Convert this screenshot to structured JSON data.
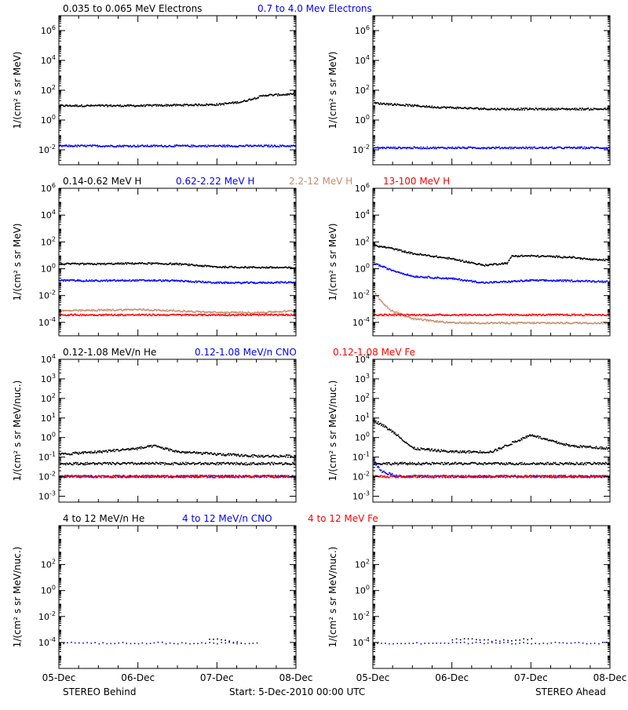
{
  "footer": {
    "left": "STEREO Behind",
    "center": "Start:  5-Dec-2010 00:00 UTC",
    "right": "STEREO Ahead"
  },
  "chart_data": [
    {
      "type": "scatter",
      "panel": "row1-left",
      "y_scale": "log",
      "ylim": [
        0.001,
        10000000
      ],
      "ylabel": "1/(cm² s sr MeV)",
      "x_ticks": [
        "05-Dec",
        "06-Dec",
        "07-Dec",
        "08-Dec"
      ],
      "y_ticks": [
        "10^6",
        "10^4",
        "10^2",
        "10^0",
        "10^-2"
      ],
      "legend": [
        {
          "text": "0.035 to 0.065 MeV Electrons",
          "color": "#000000"
        },
        {
          "text": "0.7 to 4.0 Mev Electrons",
          "color": "#0000ff"
        }
      ],
      "series": [
        {
          "color": "#000000",
          "x": [
            0,
            0.5,
            1.0,
            1.5,
            2.0,
            2.3,
            2.6,
            3.0
          ],
          "y": [
            10,
            10,
            10,
            11,
            12,
            18,
            50,
            60
          ]
        },
        {
          "color": "#0000ff",
          "x": [
            0,
            1.0,
            2.0,
            3.0
          ],
          "y": [
            0.02,
            0.02,
            0.02,
            0.02
          ]
        }
      ]
    },
    {
      "type": "scatter",
      "panel": "row1-right",
      "y_scale": "log",
      "ylim": [
        0.001,
        10000000
      ],
      "ylabel": "1/(cm² s sr MeV)",
      "x_ticks": [
        "05-Dec",
        "06-Dec",
        "07-Dec",
        "08-Dec"
      ],
      "y_ticks": [
        "10^6",
        "10^4",
        "10^2",
        "10^0",
        "10^-2"
      ],
      "legend": [],
      "series": [
        {
          "color": "#000000",
          "x": [
            0,
            0.3,
            0.8,
            1.5,
            2.0,
            2.5,
            3.0
          ],
          "y": [
            15,
            12,
            8,
            6,
            6,
            6,
            6
          ]
        },
        {
          "color": "#0000ff",
          "x": [
            0,
            1.0,
            2.0,
            3.0
          ],
          "y": [
            0.015,
            0.015,
            0.015,
            0.015
          ]
        }
      ]
    },
    {
      "type": "scatter",
      "panel": "row2-left",
      "y_scale": "log",
      "ylim": [
        1e-05,
        1000000
      ],
      "ylabel": "1/(cm² s sr MeV)",
      "x_ticks": [
        "05-Dec",
        "06-Dec",
        "07-Dec",
        "08-Dec"
      ],
      "y_ticks": [
        "10^6",
        "10^4",
        "10^2",
        "10^0",
        "10^-2",
        "10^-4"
      ],
      "legend": [
        {
          "text": "0.14-0.62 MeV H",
          "color": "#000000"
        },
        {
          "text": "0.62-2.22 MeV H",
          "color": "#0000ff"
        },
        {
          "text": "2.2-12 MeV H",
          "color": "#c98c6c"
        },
        {
          "text": "13-100 MeV H",
          "color": "#ff0000"
        }
      ],
      "series": [
        {
          "color": "#000000",
          "x": [
            0,
            0.5,
            1.0,
            1.5,
            2.0,
            2.5,
            3.0
          ],
          "y": [
            2.5,
            2.5,
            2.8,
            2.5,
            1.5,
            1.4,
            1.3
          ]
        },
        {
          "color": "#0000ff",
          "x": [
            0,
            0.5,
            1.0,
            1.5,
            2.0,
            2.5,
            3.0
          ],
          "y": [
            0.15,
            0.14,
            0.15,
            0.14,
            0.1,
            0.1,
            0.11
          ]
        },
        {
          "color": "#c98c6c",
          "x": [
            0,
            0.5,
            1.0,
            1.5,
            2.0,
            2.5,
            3.0
          ],
          "y": [
            0.0008,
            0.0009,
            0.001,
            0.0008,
            0.0006,
            0.0006,
            0.0008
          ]
        },
        {
          "color": "#ff0000",
          "x": [
            0,
            1.0,
            2.0,
            3.0
          ],
          "y": [
            0.0004,
            0.0004,
            0.0004,
            0.0004
          ]
        }
      ]
    },
    {
      "type": "scatter",
      "panel": "row2-right",
      "y_scale": "log",
      "ylim": [
        1e-05,
        1000000
      ],
      "ylabel": "1/(cm² s sr MeV)",
      "x_ticks": [
        "05-Dec",
        "06-Dec",
        "07-Dec",
        "08-Dec"
      ],
      "y_ticks": [
        "10^6",
        "10^4",
        "10^2",
        "10^0",
        "10^-2",
        "10^-4"
      ],
      "legend": [],
      "series": [
        {
          "color": "#000000",
          "x": [
            0,
            0.2,
            0.5,
            1.0,
            1.4,
            1.7,
            1.75,
            2.0,
            2.5,
            2.8,
            3.0
          ],
          "y": [
            60,
            40,
            15,
            6,
            2,
            3,
            10,
            10,
            8,
            5,
            5
          ]
        },
        {
          "color": "#0000ff",
          "x": [
            0,
            0.2,
            0.5,
            1.0,
            1.4,
            1.7,
            2.0,
            2.5,
            3.0
          ],
          "y": [
            3,
            1,
            0.3,
            0.2,
            0.1,
            0.12,
            0.15,
            0.14,
            0.12
          ]
        },
        {
          "color": "#c98c6c",
          "x": [
            0,
            0.2,
            0.5,
            1.0,
            2.0,
            3.0
          ],
          "y": [
            0.02,
            0.001,
            0.0002,
            0.0001,
            0.0001,
            0.0001
          ]
        },
        {
          "color": "#ff0000",
          "x": [
            0,
            1.0,
            2.0,
            3.0
          ],
          "y": [
            0.0004,
            0.0004,
            0.0004,
            0.0004
          ]
        }
      ]
    },
    {
      "type": "scatter",
      "panel": "row3-left",
      "y_scale": "log",
      "ylim": [
        0.0005,
        10000
      ],
      "ylabel": "1/(cm² s sr MeV/nuc.)",
      "x_ticks": [
        "05-Dec",
        "06-Dec",
        "07-Dec",
        "08-Dec"
      ],
      "y_ticks": [
        "10^4",
        "10^3",
        "10^2",
        "10^1",
        "10^0",
        "10^-1",
        "10^-2",
        "10^-3"
      ],
      "legend": [
        {
          "text": "0.12-1.08 MeV/n He",
          "color": "#000000"
        },
        {
          "text": "0.12-1.08 MeV/n CNO",
          "color": "#0000ff"
        },
        {
          "text": "0.12-1.08 MeV Fe",
          "color": "#ff0000"
        }
      ],
      "series": [
        {
          "color": "#000000",
          "x": [
            0,
            0.5,
            1.0,
            1.2,
            1.5,
            2.0,
            2.5,
            3.0
          ],
          "y": [
            0.15,
            0.2,
            0.3,
            0.4,
            0.2,
            0.15,
            0.12,
            0.12
          ]
        },
        {
          "color": "#000000",
          "x": [
            0,
            1.0,
            2.0,
            3.0
          ],
          "y": [
            0.05,
            0.05,
            0.05,
            0.05
          ]
        },
        {
          "color": "#0000ff",
          "x": [
            0,
            1.0,
            2.0,
            3.0
          ],
          "y": [
            0.011,
            0.011,
            0.011,
            0.011
          ]
        },
        {
          "color": "#ff0000",
          "x": [
            0,
            1.0,
            2.0,
            3.0
          ],
          "y": [
            0.011,
            0.011,
            0.011,
            0.011
          ]
        }
      ]
    },
    {
      "type": "scatter",
      "panel": "row3-right",
      "y_scale": "log",
      "ylim": [
        0.0005,
        10000
      ],
      "ylabel": "1/(cm² s sr MeV/nuc.)",
      "x_ticks": [
        "05-Dec",
        "06-Dec",
        "07-Dec",
        "08-Dec"
      ],
      "y_ticks": [
        "10^4",
        "10^3",
        "10^2",
        "10^1",
        "10^0",
        "10^-1",
        "10^-2",
        "10^-3"
      ],
      "legend": [],
      "series": [
        {
          "color": "#000000",
          "x": [
            0,
            0.1,
            0.3,
            0.5,
            1.0,
            1.5,
            2.0,
            2.2,
            2.5,
            3.0
          ],
          "y": [
            8,
            5,
            1.5,
            0.3,
            0.2,
            0.2,
            1.5,
            0.8,
            0.4,
            0.3
          ]
        },
        {
          "color": "#000000",
          "x": [
            0,
            1.0,
            2.0,
            3.0
          ],
          "y": [
            0.05,
            0.05,
            0.05,
            0.05
          ]
        },
        {
          "color": "#0000ff",
          "x": [
            0,
            0.1,
            0.3,
            1.0,
            2.0,
            3.0
          ],
          "y": [
            0.07,
            0.02,
            0.011,
            0.011,
            0.011,
            0.011
          ]
        },
        {
          "color": "#ff0000",
          "x": [
            0,
            1.0,
            2.0,
            3.0
          ],
          "y": [
            0.011,
            0.011,
            0.011,
            0.011
          ]
        }
      ]
    },
    {
      "type": "scatter",
      "panel": "row4-left",
      "y_scale": "log",
      "ylim": [
        1e-06,
        100000
      ],
      "ylabel": "1/(cm² s sr MeV/nuc.)",
      "x_ticks": [
        "05-Dec",
        "06-Dec",
        "07-Dec",
        "08-Dec"
      ],
      "y_ticks": [
        "10^2",
        "10^0",
        "10^-2",
        "10^-4"
      ],
      "legend": [
        {
          "text": "4 to 12 MeV/n He",
          "color": "#000000"
        },
        {
          "text": "4 to 12 MeV/n CNO",
          "color": "#0000ff"
        },
        {
          "text": "4 to 12 MeV Fe",
          "color": "#ff0000"
        }
      ],
      "series": [
        {
          "color": "#000000",
          "x": [
            1.9,
            2.0,
            2.3
          ],
          "y": [
            0.0002,
            0.0002,
            0.0001
          ]
        },
        {
          "color": "#0000ff",
          "x": [
            0,
            1.0,
            2.0,
            2.5
          ],
          "y": [
            0.0001,
            0.0001,
            0.0001,
            0.0001
          ]
        }
      ]
    },
    {
      "type": "scatter",
      "panel": "row4-right",
      "y_scale": "log",
      "ylim": [
        1e-06,
        100000
      ],
      "ylabel": "1/(cm² s sr MeV/nuc.)",
      "x_ticks": [
        "05-Dec",
        "06-Dec",
        "07-Dec",
        "08-Dec"
      ],
      "y_ticks": [
        "10^2",
        "10^0",
        "10^-2",
        "10^-4"
      ],
      "legend": [],
      "series": [
        {
          "color": "#000000",
          "x": [
            1.0,
            1.2,
            1.5,
            2.0
          ],
          "y": [
            0.0002,
            0.0002,
            0.00015,
            0.0002
          ]
        },
        {
          "color": "#0000ff",
          "x": [
            0,
            1.0,
            2.0,
            3.0
          ],
          "y": [
            0.0001,
            0.0001,
            0.0001,
            0.0001
          ]
        }
      ]
    }
  ]
}
